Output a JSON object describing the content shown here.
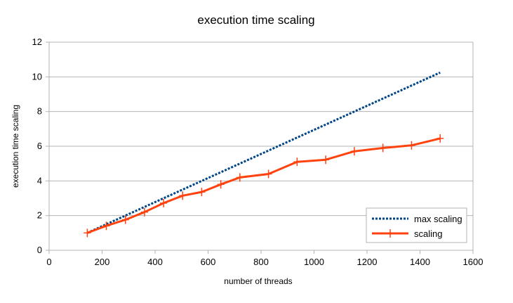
{
  "chart_data": {
    "type": "line",
    "title": "execution time scaling",
    "xlabel": "number of threads",
    "ylabel": "execution time scaling",
    "xlim": [
      0,
      1600
    ],
    "ylim": [
      0,
      12
    ],
    "x_ticks": [
      "0",
      "200",
      "400",
      "600",
      "800",
      "1000",
      "1200",
      "1400",
      "1600"
    ],
    "y_ticks": [
      "0",
      "2",
      "4",
      "6",
      "8",
      "10",
      "12"
    ],
    "x_tick_values": [
      0,
      200,
      400,
      600,
      800,
      1000,
      1200,
      1400,
      1600
    ],
    "y_tick_values": [
      0,
      2,
      4,
      6,
      8,
      10,
      12
    ],
    "grid": "horizontal",
    "legend": "bottom-right",
    "series": [
      {
        "name": "max scaling",
        "color": "#004586",
        "style": "dotted",
        "x": [
          144,
          1476
        ],
        "y": [
          1.0,
          10.25
        ]
      },
      {
        "name": "scaling",
        "color": "#ff420e",
        "style": "solid-with-plus-markers",
        "x": [
          144,
          216,
          288,
          360,
          432,
          504,
          576,
          648,
          720,
          828,
          936,
          1044,
          1152,
          1260,
          1368,
          1476
        ],
        "y": [
          1.0,
          1.41,
          1.76,
          2.2,
          2.72,
          3.15,
          3.36,
          3.8,
          4.2,
          4.4,
          5.1,
          5.22,
          5.71,
          5.9,
          6.05,
          6.45
        ]
      }
    ]
  }
}
